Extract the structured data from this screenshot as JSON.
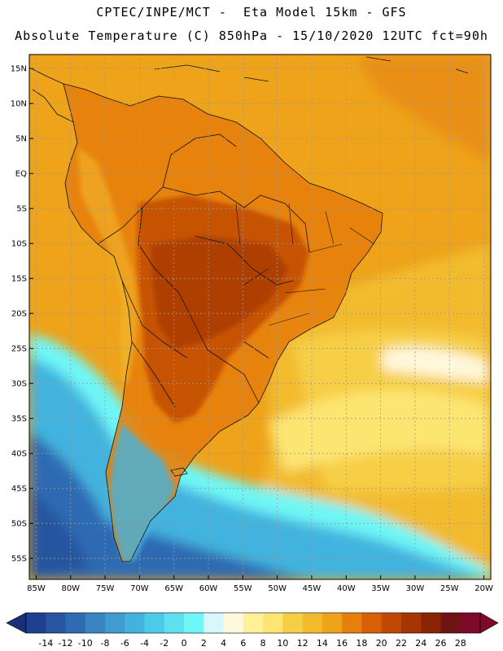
{
  "header": {
    "line1": "CPTEC/INPE/MCT -  Eta Model 15km - GFS",
    "line2": "Absolute Temperature (C) 850hPa - 15/10/2020 12UTC fct=90h"
  },
  "axes": {
    "lat_labels": [
      "15N",
      "10N",
      "5N",
      "EQ",
      "5S",
      "10S",
      "15S",
      "20S",
      "25S",
      "30S",
      "35S",
      "40S",
      "45S",
      "50S",
      "55S"
    ],
    "lat_values": [
      15,
      10,
      5,
      0,
      -5,
      -10,
      -15,
      -20,
      -25,
      -30,
      -35,
      -40,
      -45,
      -50,
      -55
    ],
    "lon_labels": [
      "85W",
      "80W",
      "75W",
      "70W",
      "65W",
      "60W",
      "55W",
      "50W",
      "45W",
      "40W",
      "35W",
      "30W",
      "25W",
      "20W"
    ],
    "lon_values": [
      -85,
      -80,
      -75,
      -70,
      -65,
      -60,
      -55,
      -50,
      -45,
      -40,
      -35,
      -30,
      -25,
      -20
    ],
    "lat_range": [
      -58,
      17
    ],
    "lon_range": [
      -86,
      -19
    ]
  },
  "colorbar": {
    "labels": [
      "-14",
      "-12",
      "-10",
      "-8",
      "-6",
      "-4",
      "-2",
      "0",
      "2",
      "4",
      "6",
      "8",
      "10",
      "12",
      "14",
      "16",
      "18",
      "20",
      "22",
      "24",
      "26",
      "28"
    ],
    "colors": [
      "#1f3f8f",
      "#27559f",
      "#2e6bb2",
      "#3a84c2",
      "#3f9bd0",
      "#43b3de",
      "#4ccbe8",
      "#5fe0f0",
      "#6ff6f6",
      "#d6f7fb",
      "#fff8dc",
      "#fff199",
      "#fde572",
      "#f7cf46",
      "#f2bb2e",
      "#eea31a",
      "#e6800c",
      "#d85f06",
      "#c04a05",
      "#a53604",
      "#8a2504",
      "#6e1414",
      "#7d0a28"
    ],
    "under_color": "#1a2f7a",
    "over_color": "#7d0a28"
  },
  "map_colors": {
    "ocean_north": "#eea31a",
    "tropical_land": "#e6800c",
    "hot_core": "#c04a05",
    "warm_south_atlantic": "#f7cf46",
    "pale_band": "#fff199",
    "cream_band": "#fff8dc",
    "cold_edge": "#6ff6f6",
    "cold_mid": "#43b3de",
    "cold_deep": "#2e6bb2"
  }
}
